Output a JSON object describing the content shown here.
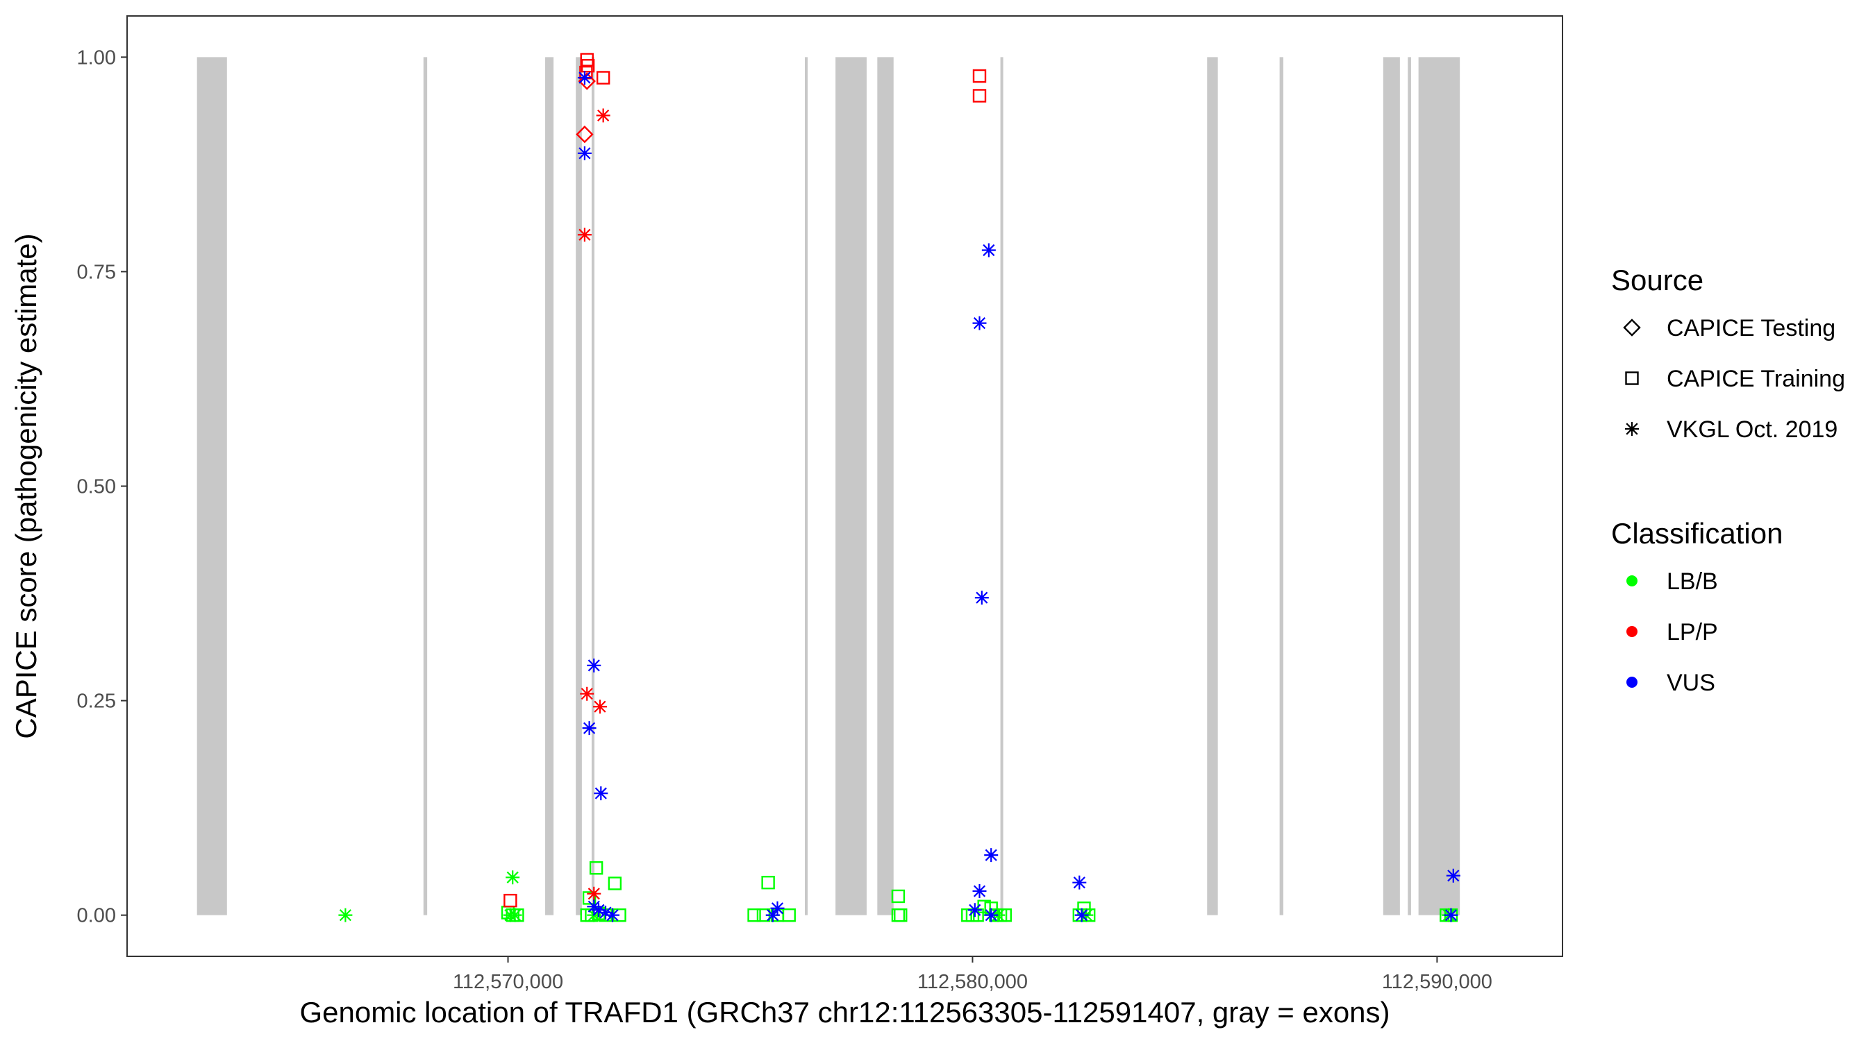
{
  "chart_data": {
    "type": "scatter",
    "title": "",
    "xlabel": "Genomic location of TRAFD1 (GRCh37 chr12:112563305-112591407, gray = exons)",
    "ylabel": "CAPICE score (pathogenicity estimate)",
    "xlim": [
      112561800,
      112592700
    ],
    "ylim": [
      -0.048,
      1.048
    ],
    "x_ticks": [
      112570000,
      112580000,
      112590000
    ],
    "x_tick_labels": [
      "112,570,000",
      "112,580,000",
      "112,590,000"
    ],
    "y_ticks": [
      0,
      0.25,
      0.5,
      0.75,
      1.0
    ],
    "y_tick_labels": [
      "0.00",
      "0.25",
      "0.50",
      "0.75",
      "1.00"
    ],
    "grid": false,
    "exons": [
      [
        112563305,
        112563950
      ],
      [
        112568180,
        112568260
      ],
      [
        112570800,
        112570980
      ],
      [
        112571460,
        112571590
      ],
      [
        112571800,
        112571860
      ],
      [
        112576390,
        112576450
      ],
      [
        112577050,
        112577720
      ],
      [
        112577950,
        112578300
      ],
      [
        112580600,
        112580660
      ],
      [
        112585050,
        112585280
      ],
      [
        112586610,
        112586690
      ],
      [
        112588840,
        112589200
      ],
      [
        112589370,
        112589440
      ],
      [
        112589600,
        112590490
      ]
    ],
    "exon_color": "#c8c8c8",
    "legend": {
      "position": "right",
      "source_title": "Source",
      "source_items": [
        {
          "label": "CAPICE Testing",
          "shape": "diamond"
        },
        {
          "label": "CAPICE Training",
          "shape": "square"
        },
        {
          "label": "VKGL Oct. 2019",
          "shape": "asterisk"
        }
      ],
      "class_title": "Classification",
      "class_items": [
        {
          "label": "LB/B",
          "color": "#00ff00"
        },
        {
          "label": "LP/P",
          "color": "#ff0000"
        },
        {
          "label": "VUS",
          "color": "#0000ff"
        }
      ]
    },
    "series": [
      {
        "name": "LB/B",
        "color": "#00ff00",
        "points": [
          {
            "x": 112566500,
            "y": 0.0,
            "shape": "asterisk"
          },
          {
            "x": 112570100,
            "y": 0.044,
            "shape": "asterisk"
          },
          {
            "x": 112570050,
            "y": 0.0,
            "shape": "asterisk"
          },
          {
            "x": 112570150,
            "y": 0.0,
            "shape": "asterisk"
          },
          {
            "x": 112570000,
            "y": 0.003,
            "shape": "square"
          },
          {
            "x": 112570100,
            "y": 0.0,
            "shape": "square"
          },
          {
            "x": 112570200,
            "y": 0.0,
            "shape": "square"
          },
          {
            "x": 112571900,
            "y": 0.055,
            "shape": "square"
          },
          {
            "x": 112572300,
            "y": 0.037,
            "shape": "square"
          },
          {
            "x": 112571750,
            "y": 0.02,
            "shape": "square"
          },
          {
            "x": 112571700,
            "y": 0.0,
            "shape": "square"
          },
          {
            "x": 112571800,
            "y": 0.0,
            "shape": "square"
          },
          {
            "x": 112571950,
            "y": 0.002,
            "shape": "square"
          },
          {
            "x": 112572100,
            "y": 0.0,
            "shape": "square"
          },
          {
            "x": 112572400,
            "y": 0.0,
            "shape": "square"
          },
          {
            "x": 112571850,
            "y": 0.0,
            "shape": "asterisk"
          },
          {
            "x": 112575600,
            "y": 0.038,
            "shape": "square"
          },
          {
            "x": 112575300,
            "y": 0.0,
            "shape": "square"
          },
          {
            "x": 112575500,
            "y": 0.0,
            "shape": "square"
          },
          {
            "x": 112575800,
            "y": 0.0,
            "shape": "square"
          },
          {
            "x": 112576050,
            "y": 0.0,
            "shape": "square"
          },
          {
            "x": 112575700,
            "y": 0.0,
            "shape": "asterisk"
          },
          {
            "x": 112578400,
            "y": 0.022,
            "shape": "square"
          },
          {
            "x": 112578400,
            "y": 0.0,
            "shape": "square"
          },
          {
            "x": 112578450,
            "y": 0.0,
            "shape": "square"
          },
          {
            "x": 112579900,
            "y": 0.0,
            "shape": "square"
          },
          {
            "x": 112580000,
            "y": 0.0,
            "shape": "square"
          },
          {
            "x": 112580100,
            "y": 0.0,
            "shape": "square"
          },
          {
            "x": 112580250,
            "y": 0.01,
            "shape": "square"
          },
          {
            "x": 112580400,
            "y": 0.008,
            "shape": "square"
          },
          {
            "x": 112580500,
            "y": 0.0,
            "shape": "square"
          },
          {
            "x": 112580600,
            "y": 0.0,
            "shape": "square"
          },
          {
            "x": 112580700,
            "y": 0.0,
            "shape": "square"
          },
          {
            "x": 112580550,
            "y": 0.0,
            "shape": "asterisk"
          },
          {
            "x": 112582400,
            "y": 0.008,
            "shape": "square"
          },
          {
            "x": 112582300,
            "y": 0.0,
            "shape": "square"
          },
          {
            "x": 112582500,
            "y": 0.0,
            "shape": "square"
          },
          {
            "x": 112582450,
            "y": 0.0,
            "shape": "asterisk"
          },
          {
            "x": 112590200,
            "y": 0.0,
            "shape": "square"
          },
          {
            "x": 112590300,
            "y": 0.0,
            "shape": "square"
          },
          {
            "x": 112590250,
            "y": 0.0,
            "shape": "asterisk"
          }
        ]
      },
      {
        "name": "LP/P",
        "color": "#ff0000",
        "points": [
          {
            "x": 112570050,
            "y": 0.017,
            "shape": "square"
          },
          {
            "x": 112571700,
            "y": 0.997,
            "shape": "square"
          },
          {
            "x": 112571720,
            "y": 0.99,
            "shape": "square"
          },
          {
            "x": 112571680,
            "y": 0.982,
            "shape": "square"
          },
          {
            "x": 112572050,
            "y": 0.976,
            "shape": "square"
          },
          {
            "x": 112571700,
            "y": 0.972,
            "shape": "diamond"
          },
          {
            "x": 112571650,
            "y": 0.91,
            "shape": "diamond"
          },
          {
            "x": 112572050,
            "y": 0.932,
            "shape": "asterisk"
          },
          {
            "x": 112571650,
            "y": 0.793,
            "shape": "asterisk"
          },
          {
            "x": 112571700,
            "y": 0.258,
            "shape": "asterisk"
          },
          {
            "x": 112571980,
            "y": 0.243,
            "shape": "asterisk"
          },
          {
            "x": 112571850,
            "y": 0.025,
            "shape": "asterisk"
          },
          {
            "x": 112580150,
            "y": 0.978,
            "shape": "square"
          },
          {
            "x": 112580150,
            "y": 0.955,
            "shape": "square"
          }
        ]
      },
      {
        "name": "VUS",
        "color": "#0000ff",
        "points": [
          {
            "x": 112571650,
            "y": 0.976,
            "shape": "asterisk"
          },
          {
            "x": 112571650,
            "y": 0.888,
            "shape": "asterisk"
          },
          {
            "x": 112571850,
            "y": 0.291,
            "shape": "asterisk"
          },
          {
            "x": 112571750,
            "y": 0.218,
            "shape": "asterisk"
          },
          {
            "x": 112572000,
            "y": 0.142,
            "shape": "asterisk"
          },
          {
            "x": 112571850,
            "y": 0.01,
            "shape": "asterisk"
          },
          {
            "x": 112571950,
            "y": 0.006,
            "shape": "asterisk"
          },
          {
            "x": 112572100,
            "y": 0.003,
            "shape": "asterisk"
          },
          {
            "x": 112572250,
            "y": 0.0,
            "shape": "asterisk"
          },
          {
            "x": 112575800,
            "y": 0.008,
            "shape": "asterisk"
          },
          {
            "x": 112575700,
            "y": 0.0,
            "shape": "asterisk"
          },
          {
            "x": 112580350,
            "y": 0.775,
            "shape": "asterisk"
          },
          {
            "x": 112580150,
            "y": 0.69,
            "shape": "asterisk"
          },
          {
            "x": 112580200,
            "y": 0.37,
            "shape": "asterisk"
          },
          {
            "x": 112580400,
            "y": 0.07,
            "shape": "asterisk"
          },
          {
            "x": 112580150,
            "y": 0.028,
            "shape": "asterisk"
          },
          {
            "x": 112580050,
            "y": 0.006,
            "shape": "asterisk"
          },
          {
            "x": 112580400,
            "y": 0.0,
            "shape": "asterisk"
          },
          {
            "x": 112582300,
            "y": 0.038,
            "shape": "asterisk"
          },
          {
            "x": 112582350,
            "y": 0.0,
            "shape": "asterisk"
          },
          {
            "x": 112590350,
            "y": 0.046,
            "shape": "asterisk"
          },
          {
            "x": 112590300,
            "y": 0.0,
            "shape": "asterisk"
          }
        ]
      }
    ]
  }
}
